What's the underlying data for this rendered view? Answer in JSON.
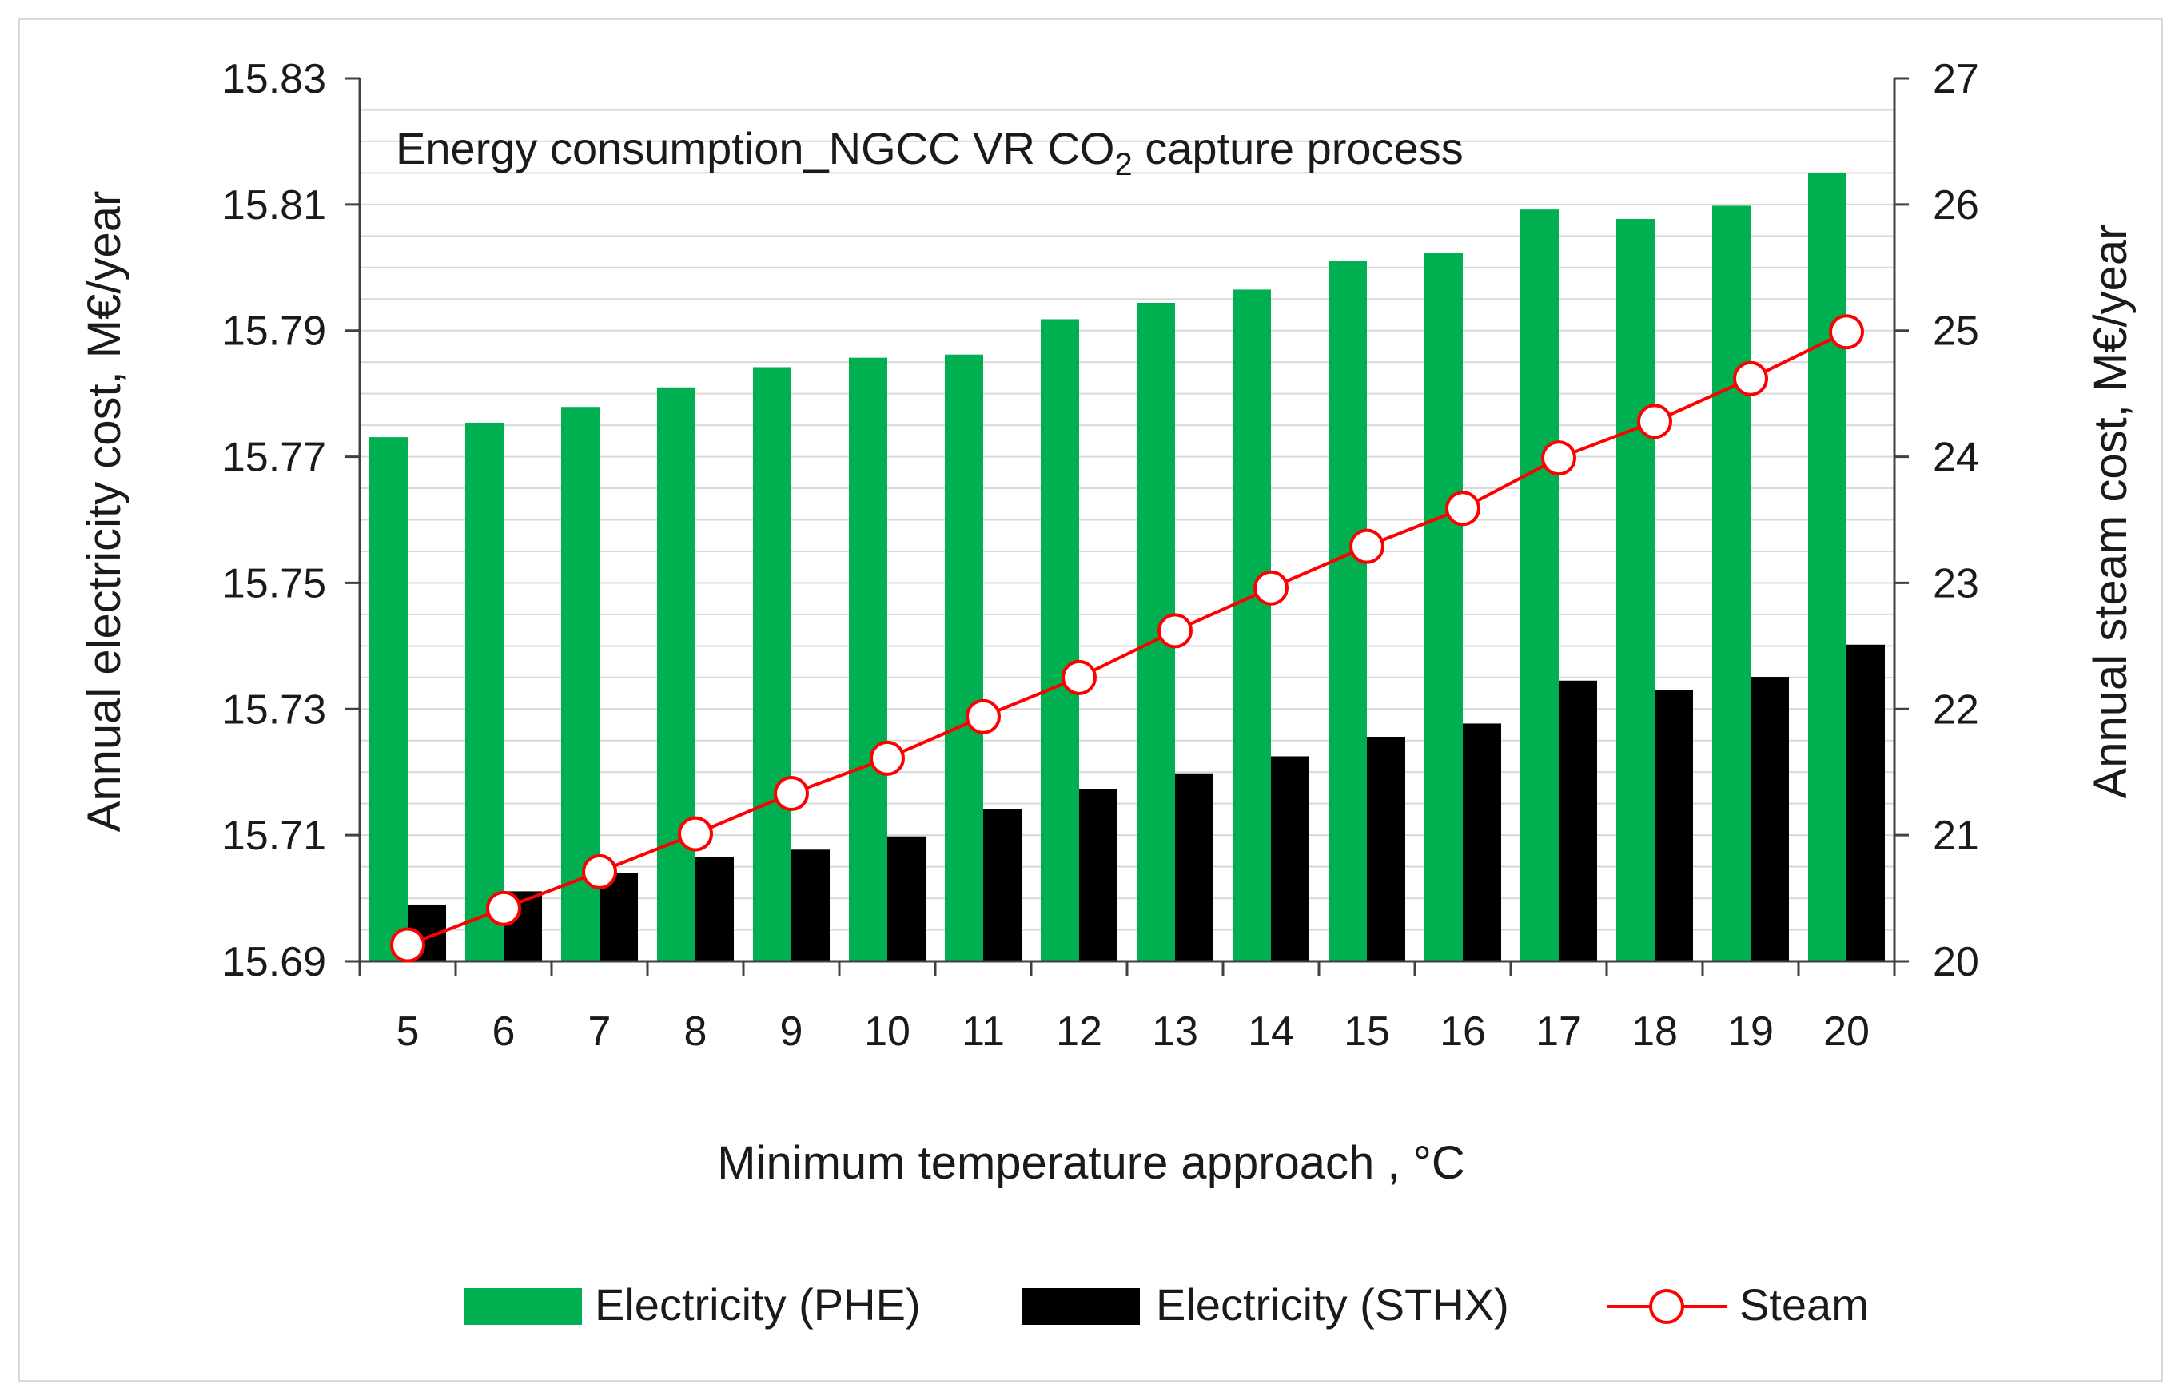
{
  "chart_data": {
    "type": "bar",
    "title": "Energy consumption_NGCC VR CO",
    "title_subscript": "2",
    "title_suffix": " capture process",
    "xlabel": "Minimum temperature approach , °C",
    "ylabel": "Annual electricity cost, M€/year",
    "y2label": "Annual steam cost, M€/year",
    "categories": [
      "5",
      "6",
      "7",
      "8",
      "9",
      "10",
      "11",
      "12",
      "13",
      "14",
      "15",
      "16",
      "17",
      "18",
      "19",
      "20"
    ],
    "ylim": [
      15.69,
      15.83
    ],
    "yticks": [
      "15.69",
      "15.71",
      "15.73",
      "15.75",
      "15.77",
      "15.79",
      "15.81",
      "15.83"
    ],
    "y2lim": [
      20,
      27
    ],
    "y2ticks": [
      "20",
      "21",
      "22",
      "23",
      "24",
      "25",
      "26",
      "27"
    ],
    "series": [
      {
        "name": "Electricity (PHE)",
        "axis": "left",
        "kind": "bar",
        "color": "#00b050",
        "values": [
          15.7731,
          15.7754,
          15.7779,
          15.781,
          15.7842,
          15.7857,
          15.7862,
          15.7918,
          15.7944,
          15.7965,
          15.8011,
          15.8023,
          15.8092,
          15.8077,
          15.8098,
          15.815
        ]
      },
      {
        "name": "Electricity (STHX)",
        "axis": "left",
        "kind": "bar",
        "color": "#000000",
        "values": [
          15.699,
          15.7011,
          15.704,
          15.7066,
          15.7077,
          15.7098,
          15.7142,
          15.7173,
          15.7198,
          15.7225,
          15.7256,
          15.7277,
          15.7345,
          15.733,
          15.7351,
          15.7402
        ]
      },
      {
        "name": "Steam",
        "axis": "right",
        "kind": "line",
        "color": "#ff0000",
        "values": [
          20.13,
          20.42,
          20.71,
          21.01,
          21.33,
          21.61,
          21.94,
          22.25,
          22.62,
          22.96,
          23.29,
          23.59,
          23.99,
          24.28,
          24.62,
          24.99
        ]
      }
    ],
    "legend": "bottom",
    "grid": true
  }
}
